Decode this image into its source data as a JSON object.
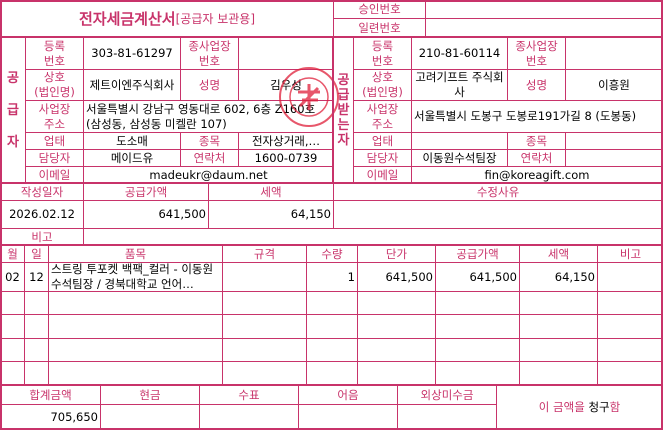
{
  "title": {
    "main": "전자세금계산서",
    "sub": "[공급자 보관용]"
  },
  "approval": {
    "approval_label": "승인번호",
    "approval_value": "",
    "serial_label": "일련번호",
    "serial_value": ""
  },
  "supplier": {
    "section_label": [
      "공",
      "급",
      "자"
    ],
    "reg_label": "등록\n번호",
    "reg_value": "303-81-61297",
    "sub_label": "종사업장\n번호",
    "sub_value": "",
    "name_label": "상호\n(법인명)",
    "name_value": "제트이엔주식회사",
    "rep_label": "성명",
    "rep_value": "김우성",
    "addr_label": "사업장\n주소",
    "addr_value": "서울특별시 강남구 영동대로 602, 6층 Z160호 (삼성동, 삼성동 미켈란 107)",
    "type_label": "업태",
    "type_value": "도소매",
    "item_label": "종목",
    "item_value": "전자상거래,…",
    "contact_label": "담당자",
    "contact_value": "메이드유",
    "phone_label": "연락처",
    "phone_value": "1600-0739",
    "email_label": "이메일",
    "email_value": "madeukr@daum.net"
  },
  "receiver": {
    "section_label": [
      "공",
      "급",
      "받",
      "는",
      "자"
    ],
    "reg_label": "등록\n번호",
    "reg_value": "210-81-60114",
    "sub_label": "종사업장\n번호",
    "sub_value": "",
    "name_label": "상호\n(법인명)",
    "name_value": "고려기프트 주식회사",
    "rep_label": "성명",
    "rep_value": "이흥원",
    "addr_label": "사업장\n주소",
    "addr_value": "서울특별시 도봉구 도봉로191가길 8 (도봉동)",
    "type_label": "업태",
    "type_value": "",
    "item_label": "종목",
    "item_value": "",
    "contact_label": "담당자",
    "contact_value": "이동원수석팀장",
    "phone_label": "연락처",
    "phone_value": "",
    "email_label": "이메일",
    "email_value": "fin@koreagift.com"
  },
  "summary": {
    "date_label": "작성일자",
    "supply_label": "공급가액",
    "tax_label": "세액",
    "reason_label": "수정사유",
    "date": "2026.02.12",
    "supply": "641,500",
    "tax": "64,150",
    "reason": "",
    "note_label": "비고",
    "note": ""
  },
  "items": {
    "headers": [
      "월",
      "일",
      "품목",
      "규격",
      "수량",
      "단가",
      "공급가액",
      "세액",
      "비고"
    ],
    "rows": [
      [
        "02",
        "12",
        "스트링 투포켓 백팩_컬러 - 이동원수석팀장 / 경북대학교 언어…",
        "",
        "1",
        "641,500",
        "641,500",
        "64,150",
        ""
      ]
    ]
  },
  "totals": {
    "headers": [
      "합계금액",
      "현금",
      "수표",
      "어음",
      "외상미수금"
    ],
    "values": [
      "705,650",
      "",
      "",
      "",
      ""
    ],
    "claim_prefix": "이 금액을 ",
    "claim_word": "청구",
    "claim_suffix": "함"
  },
  "colors": {
    "border": "#c8336a",
    "label": "#c8336a",
    "stamp": "#e0203a"
  }
}
